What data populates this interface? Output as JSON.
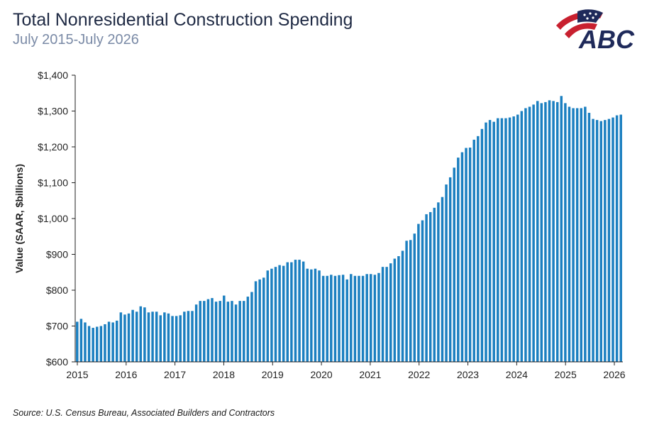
{
  "header": {
    "title": "Total Nonresidential Construction Spending",
    "subtitle": "July 2015-July 2026"
  },
  "logo": {
    "text": "ABC",
    "icon": "abc-flag-logo-icon"
  },
  "footer": {
    "source": "Source: U.S. Census Bureau, Associated Builders and Contractors"
  },
  "colors": {
    "bar": "#1b7fc0",
    "title": "#1f2a44",
    "subtitle": "#7a8aa6",
    "axis": "#222222"
  },
  "chart_data": {
    "type": "bar",
    "title": "Total Nonresidential Construction Spending",
    "subtitle": "July 2015-July 2026",
    "ylabel": "Value (SAAR, $billions)",
    "xlabel": "",
    "ylim": [
      600,
      1400
    ],
    "yticks": [
      "$600",
      "$700",
      "$800",
      "$900",
      "$1,000",
      "$1,100",
      "$1,200",
      "$1,300",
      "$1,400"
    ],
    "xticks": [
      "2015",
      "2016",
      "2017",
      "2018",
      "2019",
      "2020",
      "2021",
      "2022",
      "2023",
      "2024",
      "2025",
      "2026"
    ],
    "grid": false,
    "legend": "none",
    "series": [
      {
        "values": [
          712,
          720,
          710,
          700,
          695,
          698,
          700,
          705,
          712,
          710,
          715,
          738,
          732,
          735,
          745,
          740,
          755,
          752,
          738,
          740,
          740,
          730,
          738,
          735,
          728,
          728,
          730,
          740,
          742,
          742,
          760,
          770,
          770,
          775,
          778,
          768,
          770,
          785,
          768,
          770,
          760,
          770,
          770,
          782,
          795,
          825,
          830,
          835,
          855,
          860,
          865,
          870,
          868,
          878,
          878,
          885,
          885,
          880,
          860,
          858,
          860,
          855,
          840,
          840,
          843,
          840,
          842,
          843,
          830,
          845,
          840,
          840,
          840,
          845,
          845,
          843,
          848,
          865,
          865,
          875,
          888,
          895,
          910,
          938,
          940,
          958,
          985,
          995,
          1012,
          1018,
          1030,
          1045,
          1060,
          1095,
          1115,
          1142,
          1170,
          1185,
          1197,
          1198,
          1220,
          1230,
          1250,
          1268,
          1275,
          1270,
          1280,
          1280,
          1280,
          1282,
          1285,
          1290,
          1300,
          1308,
          1312,
          1318,
          1328,
          1322,
          1325,
          1330,
          1328,
          1325,
          1342,
          1322,
          1312,
          1308,
          1308,
          1308,
          1312,
          1295,
          1278,
          1275,
          1272,
          1275,
          1278,
          1282,
          1288,
          1290
        ]
      }
    ]
  }
}
